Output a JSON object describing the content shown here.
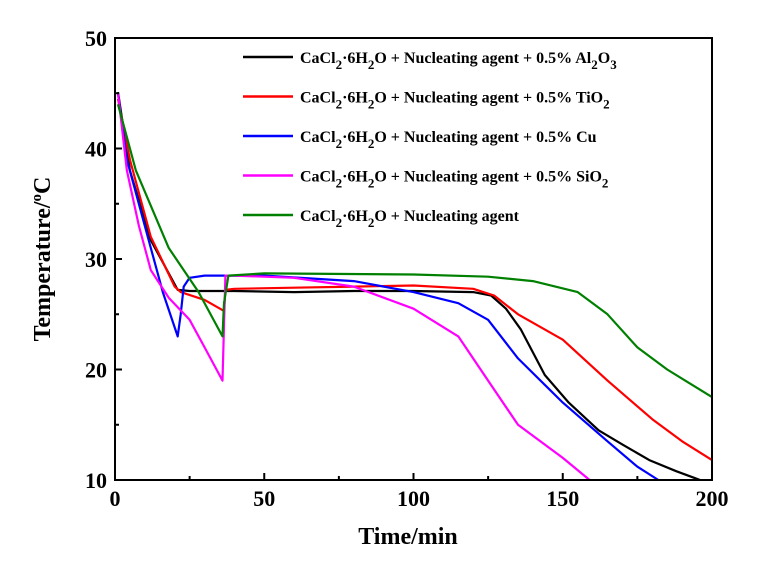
{
  "chart_data": {
    "type": "line",
    "xlabel": "Time/min",
    "ylabel": "Temperature/°C",
    "xlim": [
      0,
      200
    ],
    "ylim": [
      10,
      50
    ],
    "xticks": [
      "0",
      "50",
      "100",
      "150",
      "200"
    ],
    "yticks": [
      "10",
      "20",
      "30",
      "40",
      "50"
    ],
    "grid": false,
    "legend_position": "top-right",
    "series": [
      {
        "name": "CaCl2·6H2O + Nucleating agent + 0.5% Al2O3",
        "color": "#000000",
        "x": [
          1,
          5,
          12,
          21,
          25,
          40,
          60,
          80,
          100,
          120,
          126,
          131,
          136,
          144,
          152,
          162,
          170,
          179,
          188,
          194,
          196
        ],
        "y": [
          45.1,
          38,
          31.7,
          27.2,
          27.1,
          27.1,
          27.0,
          27.1,
          27.1,
          27.0,
          26.7,
          25.5,
          23.6,
          19.5,
          17,
          14.5,
          13.2,
          11.8,
          10.8,
          10.2,
          10
        ]
      },
      {
        "name": "CaCl2·6H2O + Nucleating agent + 0.5% TiO2",
        "color": "#ff0000",
        "x": [
          1,
          5,
          12,
          20,
          22,
          30,
          36.5,
          37,
          40,
          60,
          80,
          100,
          120,
          127,
          135,
          150,
          165,
          180,
          190,
          200
        ],
        "y": [
          44.5,
          39,
          32,
          27.5,
          27,
          26.3,
          25.3,
          27.2,
          27.3,
          27.4,
          27.5,
          27.6,
          27.3,
          26.7,
          25,
          22.7,
          19,
          15.5,
          13.5,
          11.8
        ]
      },
      {
        "name": "CaCl2·6H2O + Nucleating agent + 0.5% Cu",
        "color": "#0000ff",
        "x": [
          1,
          4,
          10,
          16,
          21,
          22,
          23,
          25,
          30,
          50,
          80,
          100,
          115,
          125,
          135,
          150,
          165,
          175,
          182
        ],
        "y": [
          45,
          39,
          33,
          27,
          23,
          25,
          27.5,
          28.3,
          28.5,
          28.5,
          28,
          27,
          26,
          24.5,
          21,
          17,
          13.5,
          11.2,
          10
        ]
      },
      {
        "name": "CaCl2·6H2O + Nucleating agent + 0.5% SiO2",
        "color": "#ff00ff",
        "x": [
          1,
          4,
          8,
          12,
          18,
          25,
          30,
          36,
          36.5,
          37,
          40,
          60,
          80,
          100,
          115,
          125,
          135,
          150,
          159
        ],
        "y": [
          45,
          38,
          33,
          29,
          26.5,
          24.5,
          22,
          19,
          24,
          28.5,
          28.5,
          28.3,
          27.5,
          25.5,
          23,
          19,
          15,
          12,
          10
        ]
      },
      {
        "name": "CaCl2·6H2O + Nucleating agent",
        "color": "#008000",
        "x": [
          1,
          7,
          18,
          28,
          36,
          36.5,
          38,
          50,
          100,
          125,
          140,
          155,
          165,
          175,
          185,
          200
        ],
        "y": [
          44,
          38,
          31,
          27,
          23,
          26,
          28.5,
          28.7,
          28.6,
          28.4,
          28,
          27,
          25,
          22,
          20,
          17.5
        ]
      }
    ]
  },
  "legend": {
    "entries": [
      {
        "base": "CaCl",
        "s1": "2",
        "mid": "·6H",
        "s2": "2",
        "rest": "O + Nucleating agent + 0.5% Al",
        "s3": "2",
        "tail": "O",
        "s4": "3"
      },
      {
        "base": "CaCl",
        "s1": "2",
        "mid": "·6H",
        "s2": "2",
        "rest": "O + Nucleating agent + 0.5% TiO",
        "s3": "2",
        "tail": "",
        "s4": ""
      },
      {
        "base": "CaCl",
        "s1": "2",
        "mid": "·6H",
        "s2": "2",
        "rest": "O + Nucleating agent + 0.5% Cu",
        "s3": "",
        "tail": "",
        "s4": ""
      },
      {
        "base": "CaCl",
        "s1": "2",
        "mid": "·6H",
        "s2": "2",
        "rest": "O + Nucleating agent + 0.5% SiO",
        "s3": "2",
        "tail": "",
        "s4": ""
      },
      {
        "base": "CaCl",
        "s1": "2",
        "mid": "·6H",
        "s2": "2",
        "rest": "O + Nucleating agent",
        "s3": "",
        "tail": "",
        "s4": ""
      }
    ]
  },
  "axis_label_parts": {
    "y_main": "Temperature/",
    "y_sup": "o",
    "y_unit": "C"
  }
}
